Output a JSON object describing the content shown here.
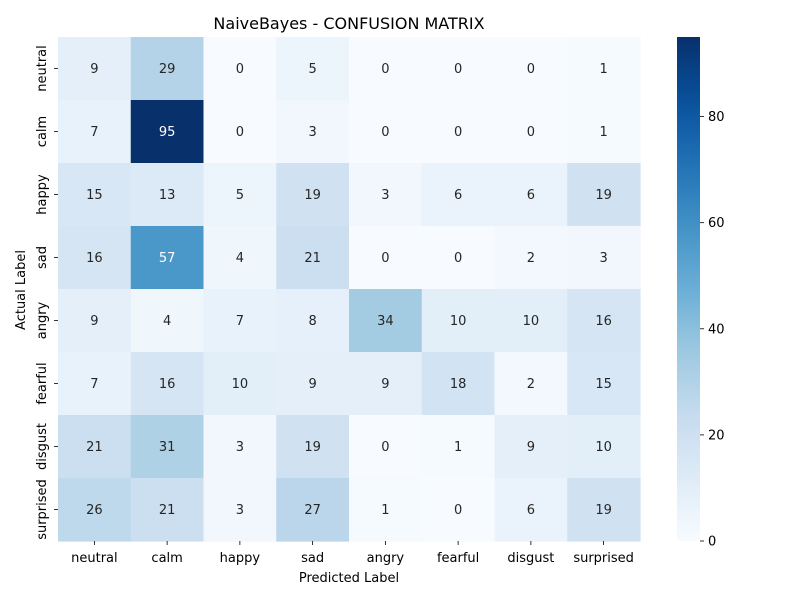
{
  "chart_data": {
    "type": "heatmap",
    "title": "NaiveBayes - CONFUSION MATRIX",
    "xlabel": "Predicted Label",
    "ylabel": "Actual Label",
    "x_categories": [
      "neutral",
      "calm",
      "happy",
      "sad",
      "angry",
      "fearful",
      "disgust",
      "surprised"
    ],
    "y_categories": [
      "neutral",
      "calm",
      "happy",
      "sad",
      "angry",
      "fearful",
      "disgust",
      "surprised"
    ],
    "matrix": [
      [
        9,
        29,
        0,
        5,
        0,
        0,
        0,
        1
      ],
      [
        7,
        95,
        0,
        3,
        0,
        0,
        0,
        1
      ],
      [
        15,
        13,
        5,
        19,
        3,
        6,
        6,
        19
      ],
      [
        16,
        57,
        4,
        21,
        0,
        0,
        2,
        3
      ],
      [
        9,
        4,
        7,
        8,
        34,
        10,
        10,
        16
      ],
      [
        7,
        16,
        10,
        9,
        9,
        18,
        2,
        15
      ],
      [
        21,
        31,
        3,
        19,
        0,
        1,
        9,
        10
      ],
      [
        26,
        21,
        3,
        27,
        1,
        0,
        6,
        19
      ]
    ],
    "colorbar": {
      "colormap": "Blues",
      "vmin": 0,
      "vmax": 95,
      "ticks": [
        0,
        20,
        40,
        60,
        80
      ],
      "tick_labels": [
        "0",
        "20",
        "40",
        "60",
        "80"
      ]
    },
    "grid": false,
    "legend": "none"
  }
}
